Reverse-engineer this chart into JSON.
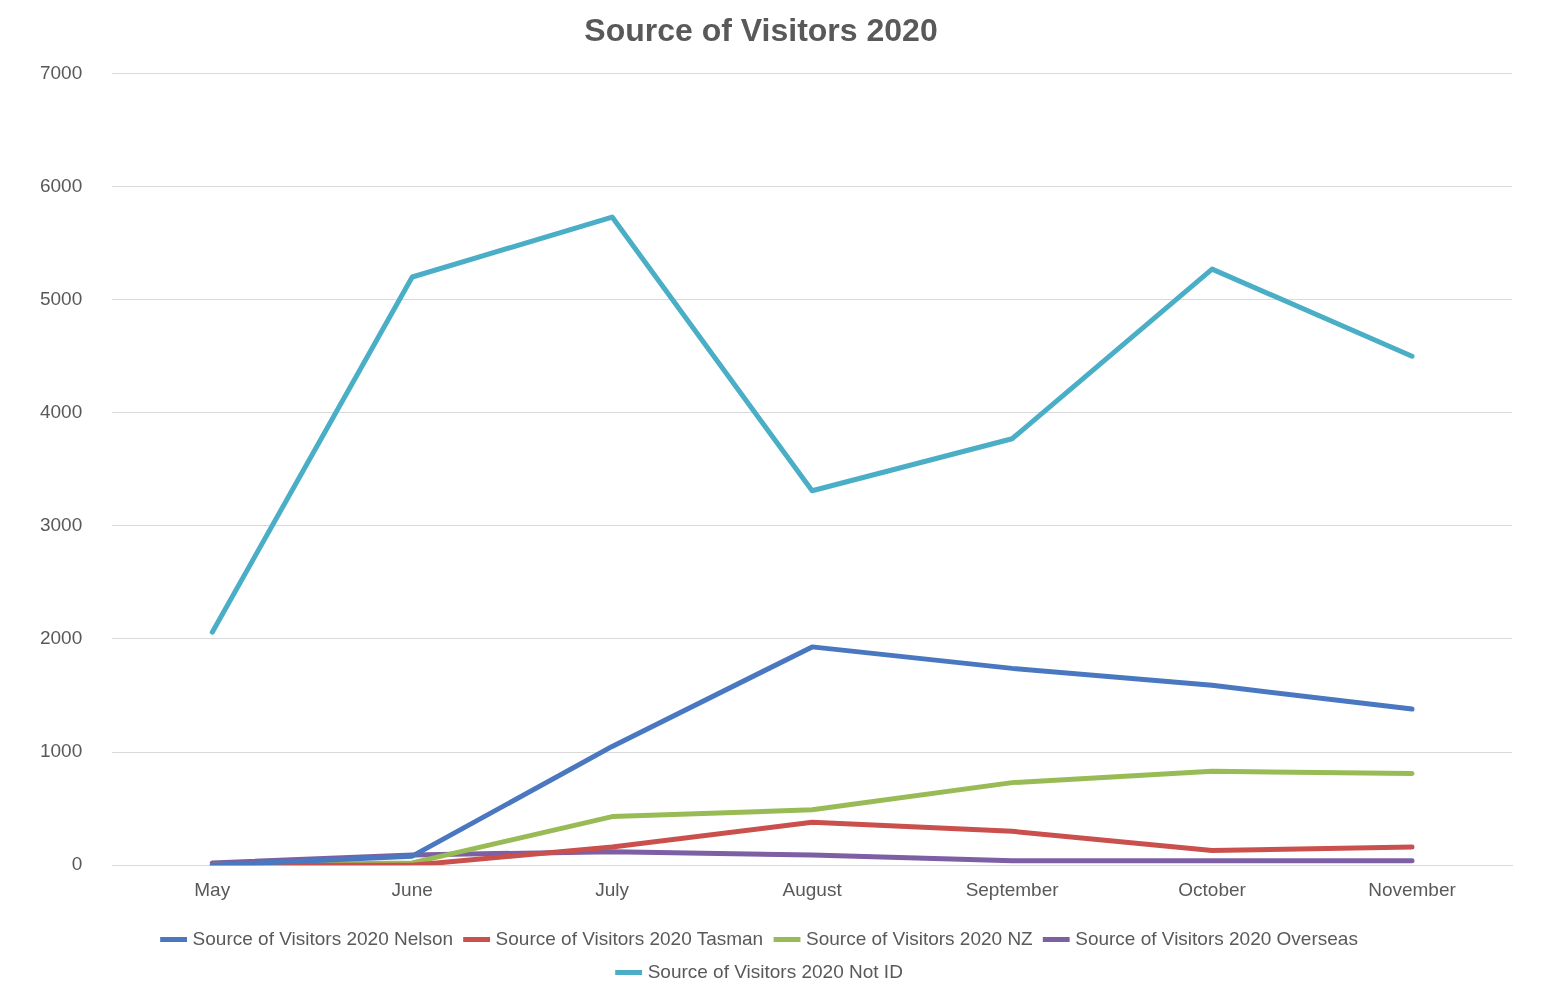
{
  "chart_data": {
    "type": "line",
    "title": "Source of Visitors 2020",
    "categories": [
      "May",
      "June",
      "July",
      "August",
      "September",
      "October",
      "November"
    ],
    "series": [
      {
        "name": "Source of Visitors 2020 Nelson",
        "color": "#4a78c0",
        "values": [
          0,
          80,
          1050,
          1930,
          1740,
          1590,
          1380
        ]
      },
      {
        "name": "Source of Visitors 2020 Tasman",
        "color": "#c9504c",
        "values": [
          0,
          0,
          160,
          380,
          300,
          130,
          160
        ]
      },
      {
        "name": "Source of Visitors 2020 NZ",
        "color": "#98bb55",
        "values": [
          0,
          20,
          430,
          490,
          730,
          830,
          810
        ]
      },
      {
        "name": "Source of Visitors 2020 Overseas",
        "color": "#7d5fa3",
        "values": [
          20,
          90,
          120,
          90,
          40,
          40,
          40
        ]
      },
      {
        "name": "Source of Visitors 2020 Not ID",
        "color": "#4aaec6",
        "values": [
          2060,
          5200,
          5730,
          3310,
          3770,
          5270,
          4500
        ]
      }
    ],
    "ylim": [
      0,
      7000
    ],
    "yticks": [
      0,
      1000,
      2000,
      3000,
      4000,
      5000,
      6000,
      7000
    ],
    "grid": "y",
    "legend": "bottom",
    "marker": "none",
    "line_style": "solid"
  }
}
